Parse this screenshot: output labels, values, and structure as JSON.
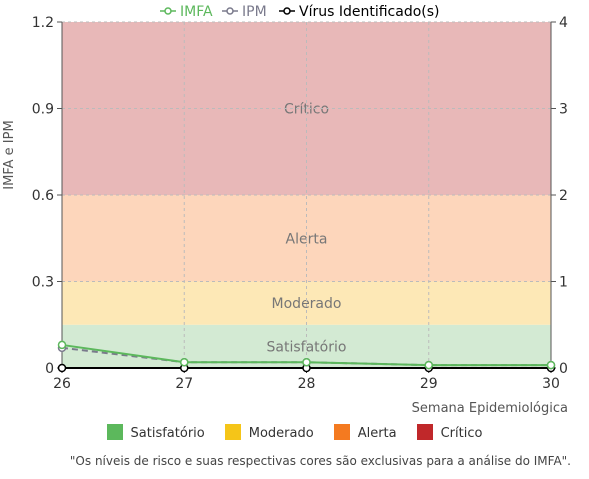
{
  "chart_data": {
    "type": "line",
    "x": [
      26,
      27,
      28,
      29,
      30
    ],
    "xlabel": "Semana Epidemiológica",
    "ylabel": "IMFA e IPM",
    "ylim": [
      0,
      1.2
    ],
    "y_ticks": [
      "0",
      "0.3",
      "0.6",
      "0.9",
      "1.2"
    ],
    "y2lim": [
      0,
      4
    ],
    "y2_ticks": [
      "0",
      "1",
      "2",
      "3",
      "4"
    ],
    "x_ticks": [
      "26",
      "27",
      "28",
      "29",
      "30"
    ],
    "grid": true,
    "legend_position": "top",
    "series": [
      {
        "name": "IMFA",
        "color": "#5cb85c",
        "dash": false,
        "axis": "left",
        "values": [
          0.08,
          0.02,
          0.02,
          0.01,
          0.01
        ]
      },
      {
        "name": "IPM",
        "color": "#7a7a8c",
        "dash": true,
        "axis": "left",
        "values": [
          0.07,
          0.02,
          0.02,
          0.01,
          0.01
        ]
      },
      {
        "name": "Vírus Identificado(s)",
        "color": "#000000",
        "dash": false,
        "axis": "right",
        "values": [
          0,
          0,
          0,
          0,
          0
        ]
      }
    ],
    "bands": [
      {
        "label": "Satisfatório",
        "from": 0,
        "to": 0.15,
        "color": "#d3ead3"
      },
      {
        "label": "Moderado",
        "from": 0.15,
        "to": 0.3,
        "color": "#fde8b6"
      },
      {
        "label": "Alerta",
        "from": 0.3,
        "to": 0.6,
        "color": "#fdd6bb"
      },
      {
        "label": "Crítico",
        "from": 0.6,
        "to": 1.2,
        "color": "#e8b8b8"
      }
    ]
  },
  "risk_legend": [
    {
      "label": "Satisfatório",
      "color": "#5cb85c"
    },
    {
      "label": "Moderado",
      "color": "#f5c518"
    },
    {
      "label": "Alerta",
      "color": "#f47a20"
    },
    {
      "label": "Crítico",
      "color": "#c0282a"
    }
  ],
  "footnote": "\"Os níveis de risco e suas respectivas cores são exclusivas para a análise do IMFA\"."
}
